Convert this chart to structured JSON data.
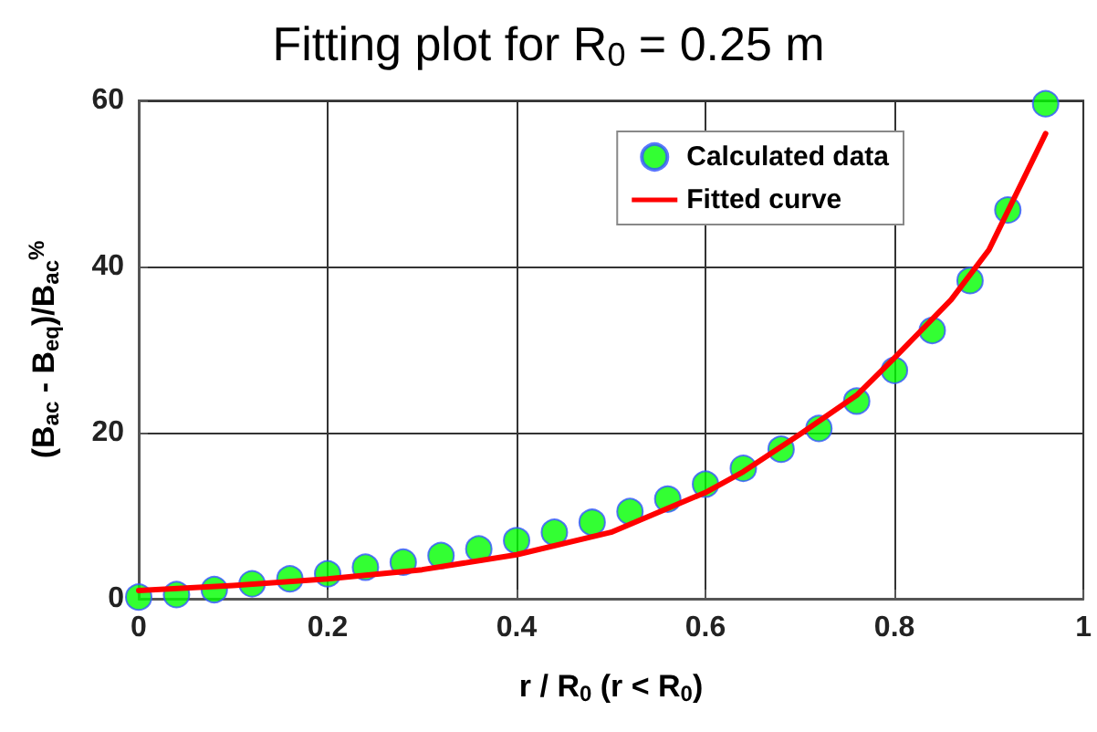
{
  "chart_data": {
    "type": "scatter",
    "title": "Fitting plot for R$_{0}$ = 0.25 m",
    "xlabel": "r / R$_{0}$ (r < R$_{0}$)",
    "ylabel": "(B$_{ac}$ - B$_{eq}$)/B$_{ac}$$^{%}$",
    "x": [
      0,
      0.04,
      0.08,
      0.12,
      0.16,
      0.2,
      0.24,
      0.28,
      0.32,
      0.36,
      0.4,
      0.44,
      0.48,
      0.52,
      0.56,
      0.6,
      0.64,
      0.68,
      0.72,
      0.76,
      0.8,
      0.84,
      0.88,
      0.92,
      0.96
    ],
    "series": [
      {
        "name": "Calculated data",
        "color": "#00ff00",
        "marker": "circle",
        "values": [
          0.2,
          0.5,
          1.1,
          1.8,
          2.4,
          3.0,
          3.8,
          4.4,
          5.2,
          6.0,
          7.0,
          8.0,
          9.2,
          10.5,
          12.0,
          13.8,
          15.7,
          18.0,
          20.5,
          23.8,
          27.5,
          32.3,
          38.3,
          46.8,
          59.6
        ]
      },
      {
        "name": "Fitted curve",
        "type": "line",
        "color": "#ff0000",
        "marker": "none",
        "line_style": "solid",
        "x": [
          0,
          0.1,
          0.2,
          0.3,
          0.4,
          0.5,
          0.6,
          0.64,
          0.7,
          0.76,
          0.8,
          0.86,
          0.9,
          0.96
        ],
        "values": [
          1.0,
          1.6,
          2.4,
          3.5,
          5.3,
          8.0,
          12.8,
          15.3,
          19.8,
          24.5,
          29,
          36,
          42,
          56
        ]
      }
    ],
    "xlim": [
      0,
      1
    ],
    "xticks": [
      0,
      0.2,
      0.4,
      0.6,
      0.8,
      1
    ],
    "ylim": [
      0,
      60
    ],
    "yticks": [
      0,
      20,
      40,
      60
    ],
    "grid": true,
    "legend": "top right"
  }
}
